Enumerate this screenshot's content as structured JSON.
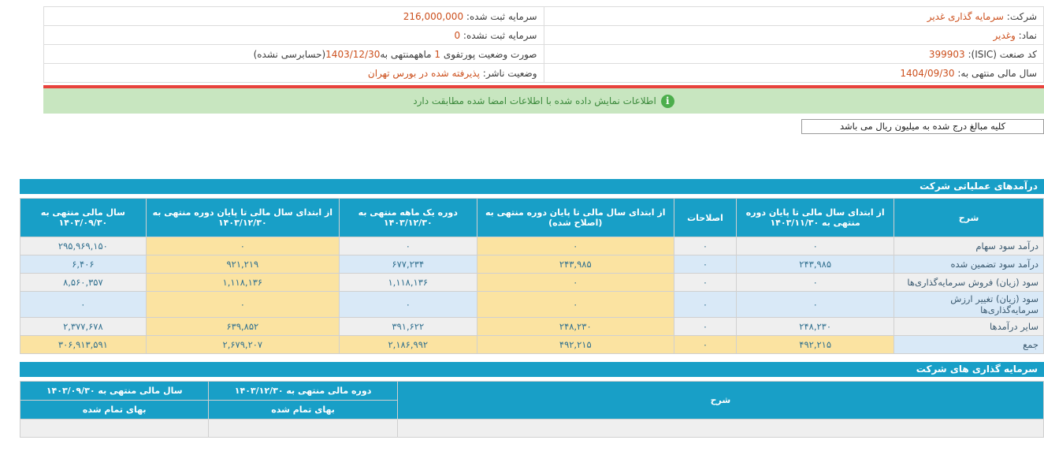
{
  "colors": {
    "header_blue": "#189fc7",
    "row_gray": "#efefef",
    "row_blue": "#d9e9f7",
    "highlight_yellow": "#fbe3a1",
    "value_orange": "#cc4f1c",
    "number_blue": "#31708f",
    "banner_green_bg": "#c8e6c0",
    "banner_green_text": "#3c8a3c",
    "red_line": "#e8423c"
  },
  "info_panel": {
    "rows": [
      {
        "r_label": "شرکت:",
        "r_value": "سرمایه گذاری غدیر",
        "l_label": "سرمایه ثبت شده:",
        "l_value": "216,000,000"
      },
      {
        "r_label": "نماد:",
        "r_value": "وغدیر",
        "l_label": "سرمایه ثبت نشده:",
        "l_value": "0"
      },
      {
        "r_label": "کد صنعت (ISIC):",
        "r_value": "399903",
        "l_parts": [
          {
            "t": "صورت وضعیت پورتفوی ",
            "c": "dark"
          },
          {
            "t": "1",
            "c": "orange"
          },
          {
            "t": " ماهه",
            "c": "dark"
          },
          {
            "t": "منتهی به",
            "c": "dark"
          },
          {
            "t": "1403/12/30",
            "c": "orange"
          },
          {
            "t": "(حسابرسی نشده)",
            "c": "dark"
          }
        ]
      },
      {
        "r_label": "سال مالی منتهی به:",
        "r_value": "1404/09/30",
        "l_label": "وضعیت ناشر:",
        "l_value": "پذیرفته شده در بورس تهران"
      }
    ]
  },
  "banner": {
    "icon": "info-icon",
    "icon_glyph": "i",
    "text": "اطلاعات نمایش داده شده با اطلاعات امضا شده مطابقت دارد"
  },
  "amounts_note": "کلیه مبالغ درج شده به میلیون ریال می باشد",
  "revenue_table": {
    "title": "درآمدهای عملیاتی شرکت",
    "headers": [
      "شرح",
      "از ابتدای سال مالی تا پایان دوره منتهی به ۱۴۰۳/۱۱/۳۰",
      "اصلاحات",
      "از ابتدای سال مالی تا پایان دوره منتهی به (اصلاح شده)",
      "دوره یک ماهه منتهی به ۱۴۰۳/۱۲/۳۰",
      "از ابتدای سال مالی تا پایان دوره منتهی به ۱۴۰۳/۱۲/۳۰",
      "سال مالی منتهی به ۱۴۰۳/۰۹/۳۰"
    ],
    "yellow_value_columns": [
      2,
      4
    ],
    "rows": [
      {
        "label": "درآمد سود سهام",
        "values": [
          "۰",
          "۰",
          "۰",
          "۰",
          "۰",
          "۲۹۵,۹۶۹,۱۵۰"
        ],
        "is_total": false
      },
      {
        "label": "درآمد سود تضمین شده",
        "values": [
          "۲۴۳,۹۸۵",
          "۰",
          "۲۴۳,۹۸۵",
          "۶۷۷,۲۳۴",
          "۹۲۱,۲۱۹",
          "۶,۴۰۶"
        ],
        "is_total": false
      },
      {
        "label": "سود (زیان) فروش سرمایه‌گذاری‌ها",
        "values": [
          "۰",
          "۰",
          "۰",
          "۱,۱۱۸,۱۳۶",
          "۱,۱۱۸,۱۳۶",
          "۸,۵۶۰,۳۵۷"
        ],
        "is_total": false
      },
      {
        "label": "سود (زیان) تغییر ارزش سرمایه‌گذاری‌ها",
        "values": [
          "۰",
          "۰",
          "۰",
          "۰",
          "۰",
          "۰"
        ],
        "is_total": false
      },
      {
        "label": "سایر درآمدها",
        "values": [
          "۲۴۸,۲۳۰",
          "۰",
          "۲۴۸,۲۳۰",
          "۳۹۱,۶۲۲",
          "۶۳۹,۸۵۲",
          "۲,۳۷۷,۶۷۸"
        ],
        "is_total": false
      },
      {
        "label": "جمع",
        "values": [
          "۴۹۲,۲۱۵",
          "۰",
          "۴۹۲,۲۱۵",
          "۲,۱۸۶,۹۹۲",
          "۲,۶۷۹,۲۰۷",
          "۳۰۶,۹۱۳,۵۹۱"
        ],
        "is_total": true
      }
    ]
  },
  "investments_table": {
    "title": "سرمایه گذاری های شرکت",
    "col_desc": "شرح",
    "col_period": "دوره مالی منتهی به ۱۴۰۳/۱۲/۳۰",
    "col_year": "سال مالی منتهی به ۱۴۰۳/۰۹/۳۰",
    "sub_cost": "بهای تمام شده"
  }
}
